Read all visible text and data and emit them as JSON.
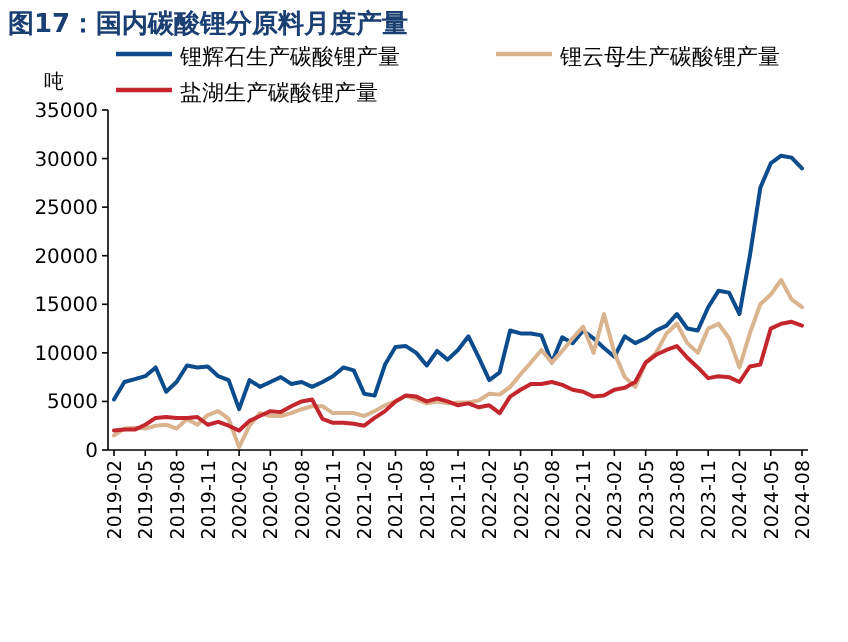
{
  "chart_data": {
    "type": "line",
    "title": "图17：国内碳酸锂分原料月度产量",
    "ylabel": "吨",
    "categories": [
      "2019-02",
      null,
      null,
      "2019-05",
      null,
      null,
      "2019-08",
      null,
      null,
      "2019-11",
      null,
      null,
      "2020-02",
      null,
      null,
      "2020-05",
      null,
      null,
      "2020-08",
      null,
      null,
      "2020-11",
      null,
      null,
      "2021-02",
      null,
      null,
      "2021-05",
      null,
      null,
      "2021-08",
      null,
      null,
      "2021-11",
      null,
      null,
      "2022-02",
      null,
      null,
      "2022-05",
      null,
      null,
      "2022-08",
      null,
      null,
      "2022-11",
      null,
      null,
      "2023-02",
      null,
      null,
      "2023-05",
      null,
      null,
      "2023-08",
      null,
      null,
      "2023-11",
      null,
      null,
      "2024-02",
      null,
      null,
      "2024-05",
      null,
      null,
      "2024-08"
    ],
    "series": [
      {
        "name": "锂辉石生产碳酸锂产量",
        "color": "#0d4c8c",
        "values": [
          5200,
          7000,
          7300,
          7600,
          8500,
          6000,
          7000,
          8700,
          8500,
          8600,
          7600,
          7200,
          4200,
          7200,
          6500,
          7000,
          7500,
          6800,
          7000,
          6500,
          7000,
          7600,
          8500,
          8200,
          5800,
          5600,
          8800,
          10600,
          10700,
          10000,
          8700,
          10200,
          9300,
          10300,
          11700,
          9500,
          7200,
          8000,
          12300,
          12000,
          12000,
          11800,
          9000,
          11600,
          11000,
          12300,
          11500,
          10500,
          9600,
          11700,
          11000,
          11500,
          12300,
          12800,
          14000,
          12500,
          12300,
          14700,
          16400,
          16200,
          14000,
          20000,
          27000,
          29500,
          30300,
          30100,
          29000
        ]
      },
      {
        "name": "锂云母生产碳酸锂产量",
        "color": "#d9b48f",
        "values": [
          1500,
          2200,
          2300,
          2200,
          2500,
          2600,
          2200,
          3200,
          2600,
          3600,
          4000,
          3200,
          300,
          2500,
          3800,
          3500,
          3500,
          3800,
          4200,
          4500,
          4500,
          3800,
          3800,
          3800,
          3500,
          4000,
          4600,
          5000,
          5600,
          5200,
          4800,
          5000,
          4800,
          4900,
          4900,
          5100,
          5800,
          5700,
          6500,
          7800,
          9000,
          10300,
          9000,
          10200,
          11500,
          12700,
          10000,
          14000,
          10000,
          7500,
          6500,
          9000,
          10000,
          12000,
          13000,
          11000,
          10000,
          12500,
          13000,
          11500,
          8500,
          12000,
          15000,
          16000,
          17500,
          15500,
          14700
        ]
      },
      {
        "name": "盐湖生产碳酸锂产量",
        "color": "#c4262e",
        "values": [
          2000,
          2100,
          2100,
          2600,
          3300,
          3400,
          3300,
          3300,
          3400,
          2600,
          2900,
          2500,
          2000,
          3000,
          3500,
          4000,
          3900,
          4500,
          5000,
          5200,
          3200,
          2800,
          2800,
          2700,
          2500,
          3300,
          4000,
          5000,
          5600,
          5500,
          5000,
          5300,
          5000,
          4600,
          4800,
          4400,
          4600,
          3800,
          5500,
          6200,
          6800,
          6800,
          7000,
          6700,
          6200,
          6000,
          5500,
          5600,
          6200,
          6400,
          7000,
          9000,
          9800,
          10300,
          10700,
          9500,
          8500,
          7400,
          7600,
          7500,
          7000,
          8600,
          8800,
          12500,
          13000,
          13200,
          12800
        ]
      }
    ],
    "ylim": [
      0,
      35000
    ],
    "yticks": [
      0,
      5000,
      10000,
      15000,
      20000,
      25000,
      30000,
      35000
    ],
    "legend": "top left",
    "grid": false
  }
}
